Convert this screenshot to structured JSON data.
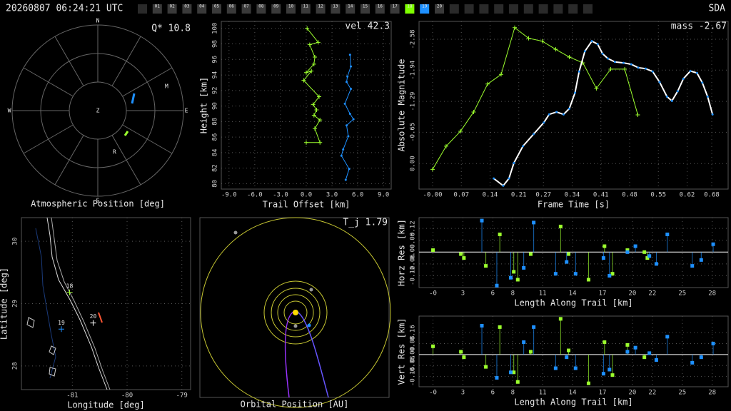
{
  "header": {
    "timestamp": "20260807 06:24:21 UTC",
    "network": "SDA",
    "stations": [
      {
        "label": "01",
        "color": "#3a3a3a"
      },
      {
        "label": "02",
        "color": "#3a3a3a"
      },
      {
        "label": "03",
        "color": "#3a3a3a"
      },
      {
        "label": "04",
        "color": "#3a3a3a"
      },
      {
        "label": "05",
        "color": "#3a3a3a"
      },
      {
        "label": "06",
        "color": "#3a3a3a"
      },
      {
        "label": "07",
        "color": "#3a3a3a"
      },
      {
        "label": "08",
        "color": "#3a3a3a"
      },
      {
        "label": "09",
        "color": "#3a3a3a"
      },
      {
        "label": "10",
        "color": "#3a3a3a"
      },
      {
        "label": "11",
        "color": "#3a3a3a"
      },
      {
        "label": "12",
        "color": "#3a3a3a"
      },
      {
        "label": "13",
        "color": "#3a3a3a"
      },
      {
        "label": "14",
        "color": "#3a3a3a"
      },
      {
        "label": "15",
        "color": "#3a3a3a"
      },
      {
        "label": "16",
        "color": "#3a3a3a"
      },
      {
        "label": "17",
        "color": "#3a3a3a"
      },
      {
        "label": "18",
        "color": "#7fff00"
      },
      {
        "label": "19",
        "color": "#1e90ff"
      },
      {
        "label": "20",
        "color": "#3a3a3a"
      }
    ]
  },
  "chart_data": [
    {
      "type": "polar",
      "title": "Atmospheric Position [deg]",
      "annotation": "Q* 10.8",
      "directions": {
        "north": "N",
        "east": "E",
        "south": "S",
        "west": "W"
      },
      "zenith": "Z",
      "markers": [
        "M",
        "R"
      ]
    },
    {
      "type": "line",
      "annotation": "vel 42.3",
      "xlabel": "Trail Offset [km]",
      "ylabel": "Height [km]",
      "xlim": [
        -9.9,
        9.9
      ],
      "ylim": [
        79.3,
        100.9
      ],
      "grid": true,
      "xticks": [
        {
          "value": -9,
          "label": "-9.0"
        },
        {
          "value": -6,
          "label": "-6.0"
        },
        {
          "value": -3,
          "label": "-3.0"
        },
        {
          "value": 0,
          "label": "0.0"
        },
        {
          "value": 3,
          "label": "3.0"
        },
        {
          "value": 6,
          "label": "6.0"
        },
        {
          "value": 9,
          "label": "9.0"
        }
      ],
      "yticks": [
        80,
        82,
        84,
        86,
        88,
        90,
        92,
        94,
        96,
        98,
        100
      ],
      "series": [
        {
          "color": "#9cff2e",
          "marker": "+",
          "x": [
            0.1,
            1.4,
            0.4,
            1.0,
            0.9,
            0,
            0.6,
            -0.3,
            1.5,
            0.8,
            1.2,
            0.9,
            1.6,
            1.0,
            1.6,
            0
          ],
          "values": [
            100.0,
            98.2,
            97.9,
            96.3,
            95.4,
            94.3,
            94.5,
            93.3,
            91.2,
            90.2,
            89.5,
            88.8,
            88.2,
            87.1,
            85.3,
            85.3
          ]
        },
        {
          "color": "#1e90ff",
          "marker": "dot",
          "x": [
            5.1,
            5.2,
            4.8,
            4.7,
            5.2,
            4.5,
            5.1,
            5.5,
            4.7,
            4.9,
            4.3,
            4.1,
            5.0,
            4.6
          ],
          "values": [
            96.6,
            95.1,
            93.8,
            93.1,
            92.2,
            90.3,
            89.0,
            88.3,
            87.5,
            86.1,
            84.4,
            83.6,
            81.9,
            80.5
          ]
        }
      ]
    },
    {
      "type": "line",
      "annotation": "mass -2.67",
      "xlabel": "Frame Time [s]",
      "ylabel": "Absolute Magnitude",
      "xlim": [
        -0.033,
        0.72
      ],
      "ylim": [
        0.53,
        -2.95
      ],
      "grid": true,
      "xticks": [
        {
          "value": 0,
          "label": "-0.00"
        },
        0.07,
        0.14,
        0.21,
        0.27,
        0.34,
        0.41,
        0.48,
        0.55,
        0.62,
        0.68
      ],
      "yticks": [
        {
          "value": 0,
          "label": "0.00"
        },
        -0.65,
        -1.29,
        -1.94,
        -2.58
      ],
      "series": [
        {
          "color": "#9cff2e",
          "marker": "+",
          "x": [
            0,
            0.033,
            0.068,
            0.1,
            0.134,
            0.167,
            0.2,
            0.234,
            0.267,
            0.3,
            0.333,
            0.366,
            0.399,
            0.434,
            0.468,
            0.5
          ],
          "values": [
            0.12,
            -0.36,
            -0.67,
            -1.07,
            -1.65,
            -1.85,
            -2.82,
            -2.6,
            -2.54,
            -2.37,
            -2.21,
            -2.09,
            -1.56,
            -1.96,
            -1.96,
            -1.01
          ]
        },
        {
          "color": "#ffffff",
          "marker": "dot",
          "x": [
            0.149,
            0.172,
            0.186,
            0.198,
            0.22,
            0.246,
            0.271,
            0.284,
            0.302,
            0.319,
            0.333,
            0.347,
            0.357,
            0.371,
            0.388,
            0.402,
            0.414,
            0.427,
            0.444,
            0.465,
            0.484,
            0.501,
            0.519,
            0.536,
            0.553,
            0.571,
            0.583,
            0.597,
            0.611,
            0.628,
            0.644,
            0.657,
            0.67,
            0.682
          ],
          "values": [
            0.31,
            0.46,
            0.31,
            -0.01,
            -0.36,
            -0.61,
            -0.85,
            -1.02,
            -1.07,
            -1.02,
            -1.14,
            -1.47,
            -1.91,
            -2.33,
            -2.54,
            -2.48,
            -2.28,
            -2.18,
            -2.11,
            -2.09,
            -2.06,
            -1.99,
            -1.97,
            -1.91,
            -1.69,
            -1.39,
            -1.3,
            -1.5,
            -1.76,
            -1.92,
            -1.88,
            -1.68,
            -1.39,
            -1.02
          ]
        }
      ]
    },
    {
      "type": "map",
      "xlabel": "Longitude [deg]",
      "ylabel": "Latitude [deg]",
      "xlim": [
        -81.93,
        -78.84
      ],
      "ylim": [
        27.62,
        30.38
      ],
      "grid": true,
      "xticks": [
        -81,
        -80,
        -79
      ],
      "yticks": [
        28,
        29,
        30
      ],
      "stations": {
        "labels": [
          "18",
          "19",
          "20"
        ],
        "x": [
          -81.05,
          -81.2,
          -80.62
        ],
        "y": [
          29.18,
          28.59,
          28.69
        ],
        "colors": [
          "#9cff2e",
          "#1e90ff",
          "#ffffff"
        ]
      }
    },
    {
      "type": "orbit",
      "title": "Orbital Position [AU]",
      "annotation": "T_j 1.79"
    },
    {
      "type": "stem",
      "xlabel": "Length Along Trail [km]",
      "ylabel": "Horz Res [km]",
      "xlim": [
        -1.4,
        29.6
      ],
      "ylim": [
        -0.18,
        0.175
      ],
      "grid": true,
      "zero_line": true,
      "xticks": [
        {
          "value": 0,
          "label": "-0"
        },
        3,
        6,
        8,
        11,
        14,
        17,
        20,
        22,
        25,
        28
      ],
      "yticks": [
        0.12,
        0.06,
        {
          "value": 0,
          "label": "0.00"
        },
        -0.06,
        -0.12
      ],
      "series": [
        {
          "color": "#9cff2e",
          "x": [
            0,
            2.8,
            3.1,
            5.3,
            6.7,
            8.1,
            8.5,
            9.8,
            12.8,
            13.6,
            15.6,
            17.2,
            18.0,
            19.5,
            21.2,
            21.5
          ],
          "values": [
            0.01,
            -0.01,
            -0.03,
            -0.07,
            0.09,
            -0.1,
            -0.14,
            -0.01,
            0.13,
            -0.01,
            -0.14,
            0.03,
            -0.11,
            0.01,
            0,
            -0.03
          ]
        },
        {
          "color": "#1e90ff",
          "x": [
            4.9,
            6.4,
            7.8,
            9.1,
            10.1,
            12.3,
            13.4,
            14.3,
            17.1,
            17.7,
            19.5,
            20.3,
            21.7,
            22.4,
            23.5,
            26.0,
            26.9,
            28.1
          ],
          "values": [
            0.16,
            -0.17,
            -0.13,
            -0.08,
            0.15,
            -0.11,
            -0.05,
            -0.11,
            -0.03,
            -0.12,
            0,
            0.03,
            -0.02,
            -0.06,
            0.09,
            -0.07,
            -0.04,
            0.04
          ]
        }
      ]
    },
    {
      "type": "stem",
      "xlabel": "Length Along Trail [km]",
      "ylabel": "Vert Res [km]",
      "xlim": [
        -1.4,
        29.6
      ],
      "ylim": [
        -0.235,
        0.28
      ],
      "grid": true,
      "zero_line": true,
      "xticks": [
        {
          "value": 0,
          "label": "-0"
        },
        3,
        6,
        8,
        11,
        14,
        17,
        20,
        22,
        25,
        28
      ],
      "yticks": [
        0.16,
        0.08,
        {
          "value": 0,
          "label": "0.00"
        },
        -0.08,
        -0.16
      ],
      "series": [
        {
          "color": "#9cff2e",
          "x": [
            0,
            2.8,
            3.1,
            5.3,
            6.7,
            8.1,
            8.5,
            9.8,
            12.8,
            13.6,
            15.6,
            17.2,
            18.0,
            19.5,
            21.2
          ],
          "values": [
            0.06,
            0.02,
            -0.02,
            -0.09,
            0.2,
            -0.13,
            -0.2,
            0.02,
            0.26,
            0.03,
            -0.21,
            0.09,
            -0.15,
            0.07,
            -0.02
          ]
        },
        {
          "color": "#1e90ff",
          "x": [
            4.9,
            6.4,
            7.8,
            9.1,
            10.1,
            12.3,
            13.4,
            14.3,
            17.1,
            17.7,
            19.5,
            20.3,
            21.7,
            22.4,
            23.5,
            26.0,
            26.9,
            28.1
          ],
          "values": [
            0.21,
            -0.17,
            -0.13,
            0.09,
            0.2,
            -0.1,
            -0.02,
            -0.1,
            -0.14,
            -0.11,
            0.02,
            0.05,
            0.01,
            -0.04,
            0.13,
            -0.06,
            -0.02,
            0.08
          ]
        }
      ]
    }
  ]
}
